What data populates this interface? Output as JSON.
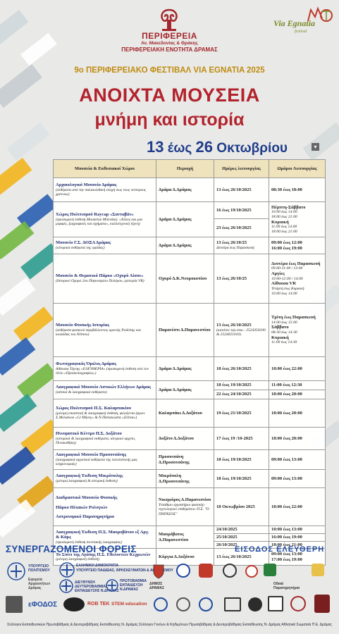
{
  "header": {
    "org_name": "ΠΕΡΙΦΕΡΕΙΑ",
    "org_region": "Αν. Μακεδονίας & Θράκης",
    "org_unit": "ΠΕΡΙΦΕΡΕΙΑΚΗ ΕΝΟΤΗΤΑ ΔΡΑΜΑΣ",
    "via_logo": "Via Egnatia",
    "via_logo_sub": "festival",
    "festival": "9ο ΠΕΡΙΦΕΡΕΙΑΚΟ ΦΕΣΤΙΒΑΛ VIA EGNATIA 2025",
    "title_line1": "ΑΝΟΙΧΤΑ ΜΟΥΣΕΙΑ",
    "title_line2": "μνήμη και ιστορία",
    "dates_from": "13",
    "dates_mid": " έως ",
    "dates_to": "26",
    "dates_month": " Οκτωβρίου"
  },
  "table": {
    "headers": [
      "Μουσεία & Εκθεσιακοί Χώροι",
      "Περιοχή",
      "Ημέρες λειτουργίας",
      "Ωράριο Λειτουργίας"
    ],
    "rows": [
      {
        "name": "Αρχαιολογικό Μουσείο Δράμας",
        "desc": "(εκθέματα από την παλαιολιθική εποχή έως τους νεότερους χρόνους)",
        "place": "Δράμα Δ.Δράμας",
        "days": "13 έως 26/10/2025",
        "hours": "08:30 έως 18:00"
      },
      {
        "name": "Χώρος Πολιτισμού Raycap «Σανταβάν»",
        "desc": "(προσωρινή έκθεση Μουσείου Μπενάκη: «Χίλιες και μια μορφές, ζωγραφικές και σχήματα», καλλιτεχνική τέχνη)",
        "place": "Δράμα Δ.Δράμας",
        "days1": "16 έως 19/10/2025",
        "days2": "23 έως 26/10/2025",
        "h1": "Πέμπτη-Σάββατο",
        "h2": "10:00 έως 14:00",
        "h3": "18:00 έως 21:00",
        "h4": "Κυριακή",
        "h5": "11:00 έως 14:00",
        "h6": "18:00 έως 21:00"
      },
      {
        "name": "Μουσείο Γ.Σ. ΔΟΞΑ Δράμας",
        "desc": "(ιστορικά εκθέματα της ομάδας)",
        "place": "Δράμα Δ.Δράμας",
        "days": "13 έως 26/10/25",
        "days_note": "Δευτέρα έως Παρασκευή",
        "hours": "09:00 έως 12:00",
        "hours2": "16:00 έως 19:00"
      },
      {
        "name": "Μουσείο & Θεματικό Πάρκο «Οχυρό Λίσσε»",
        "desc": "(Ιστορικό Οχυρό 2ου Παγκοσμίου Πολέμου, εμπειρία VR)",
        "place": "Οχυρό Δ.Κ.Νευροκοπίου",
        "days": "13 έως 26/10/25",
        "h1": "Δευτέρα έως Παρασκευή",
        "h2": "09:00-11:00 / 13:00",
        "h3": "Αργίες",
        "h4": "10:00-12:00 / 14:00",
        "h5": "Αίθουσα VR",
        "h6": "Τετάρτη έως Κυριακή",
        "h7": "10:00 έως 14:00"
      },
      {
        "name": "Μουσείο Φυσικής Ιστορίας",
        "desc": "(εκθέματα φυσικού περιβάλλοντος ορεινής Ροδόπης και κοιλάδας του Νέστου)",
        "place": "Παρανέστι Δ.Παρανεστίου",
        "days": "13 έως 26/10/2025",
        "days_note": "(κατόπιν τηλ.επικ.: 2524350100 & 2524021010)",
        "h1": "Τρίτη έως Παρασκευή",
        "h2": "14:00 έως 15:00",
        "h3": "Σάββατο",
        "h4": "08:30 έως 14:30",
        "h5": "Κυριακή",
        "h6": "11:00 έως 14:30"
      },
      {
        "name": "Φωτογραφικός Όμιλος Δράμας",
        "desc": "Αίθουσα Τέχνης «ΕΛΕΥΘΕΡΙΑ» (προσωρινή έκθεση υπό τον τίτλο «Προσωπογραφίες»)",
        "place": "Δράμα Δ.Δράμας",
        "days": "18 έως 26/10/2025",
        "hours": "18:00 έως 22:00"
      },
      {
        "name": "Λαογραφικό Μουσείο Αστικών Ελλήνων Δράμας",
        "desc": "(αστικά & λαογραφικά εκθέματα)",
        "place": "Δράμα Δ.Δράμας",
        "days1": "18 έως 19/10/2025",
        "days2": "22 έως 24/10/2025",
        "hours1": "11:00 έως 12:30",
        "hours2": "18:00 έως 20:00"
      },
      {
        "name": "Χώρος Πολιτισμού Π.Σ. Καλαμπακίου",
        "desc": "(μόνιμη εικαστική & λαογραφική έκθεση, φιλοξενία έργων Σ.Μελιάκου «12 Μήνες» & Ν.Παπακώστα «Σπίτια»)",
        "place": "Καλαμπάκι Δ.Δοξάτου",
        "days": "19 έως 21/10/2025",
        "hours": "18:00 έως 20:00"
      },
      {
        "name": "Πνευματικό Κέντρο Π.Σ. Δοξάτου",
        "desc": "(ιστορικά & λαογραφικά εκθέματα, ιστορικό αρχείο, Πινακοθήκη)",
        "place": "Δοξάτο Δ.Δοξάτου",
        "days": "17 έως 19 /10-2025",
        "hours": "18:00 έως 20:00"
      },
      {
        "name": "Λαογραφικό Μουσείο Προσοτσάνης",
        "desc": "(λαογραφικά αγροτικά εκθέματα της πολιτιστικής μας κληρονομιάς)",
        "place": "Προσοτσάνη Δ.Προσοτσάνης",
        "days": "18 έως 19/10/2025",
        "hours": "09:00 έως 13:00"
      },
      {
        "name": "Λαογραφική Έκθεση Μικρόπολης",
        "desc": "(μόνιμη λαογραφική & ιστορική έκθεση)",
        "place": "Μικρόπολη Δ.Προσοτσάνης",
        "days": "18 έως 19/10/2025",
        "hours": "09:00 έως 13:00"
      },
      {
        "names": [
          "Διαδραστικό Μουσείο Φυσικής",
          "Πάρκο Ηλιακών Ρολογιών",
          "Αστρονομικό Παρατηρητήριο"
        ],
        "place1": "Νικηφόρος Δ.Παρανεστίου",
        "place2": "Υπαίθριο εργαστήριο φυσικής-τεχνολογικό επιθεμάτων Π.Σ. \"Ο ΠΗΓΑΣΟΣ\"",
        "days": "18 Οκτωβρίου 2025",
        "hours": "18:00 έως 22:00"
      },
      {
        "name": "Λαογραφική Έκθεση Π.Σ. Μαυροβάτου εξ Αργ. & Κάρς",
        "desc": "(προσωρινή έκθεση ποντιακής λαογραφίας)",
        "place": "Μαυρόβατος Δ.Παρανεστίου",
        "days1": "24/10/2025",
        "days2": "25/10/2025",
        "days3": "26/10/2025",
        "hours1": "10:00 έως 13:00",
        "hours2": "16:00 έως 19:00",
        "hours3": "18:00 έως 21:00"
      },
      {
        "name": "Το Σπίτι της Αγάπης Π.Σ. Εθελοντών Κεχρωτών",
        "desc": "(μόνιμη λαογραφική έκθεση)",
        "place": "Κύργια Δ.Δοξάτου",
        "days": "13 έως 26/10/2025",
        "hours": "09:00 έως 13:00",
        "hours2": "17:00 έως 19:00"
      }
    ]
  },
  "footer": {
    "partners_title": "ΣΥΝΕΡΓΑΖΟΜΕΝΟΙ ΦΟΡΕΙΣ",
    "free_entry": "ΕΙΣΟΔΟΣ ΕΛΕΥΘΕΡΗ",
    "ministry1": "ΥΠΟΥΡΓΕΙΟ ΠΟΛΙΤΙΣΜΟΥ",
    "ministry1b": "Εφορεία Αρχαιοτήτων Δράμας",
    "ministry2": "ΕΛΛΗΝΙΚΗ ΔΗΜΟΚΡΑΤΙΑ",
    "ministry2b": "ΥΠΟΥΡΓΕΙΟ ΠΑΙΔΕΙΑΣ, ΘΡΗΣΚΕΥΜΑΤΩΝ & ΑΘΛΗΤΙΣΜΟΥ",
    "ministry3": "ΔΙΕΥΘΥΝΣΗ ΔΕΥΤΕΡΟΒΑΘΜΙΑΣ ΕΚΠΑΙΔΕΥΣΗΣ Ν.ΔΡΑΜΑΣ",
    "ministry4": "ΠΡΩΤΟΒΑΘΜΙΑ ΕΚΠΑΙΔΕΥΣΗ Ν.ΔΡΑΜΑΣ",
    "dimos": "ΔΗΜΟΣ ΔΡΑΜΑΣ",
    "arthur": "Οδικά Παρατηρητήρια",
    "efodos": "εΦΟΔΟΣ",
    "robotek": "ROB TEK",
    "stem": "STEM education",
    "bottom_line": "Σύλλογοι Εκπαιδευτικών Πρωτοβάθμιας & Δευτεροβάθμιας Εκπαίδευσης Ν. Δράμας   Σύλλογοι Γονέων & Κηδεμόνων Πρωτοβάθμιας & Δευτεροβάθμιας Εκπαίδευσης Ν. Δράμας   Αθλητικά Σωματεία Π.Ε. Δράμας"
  }
}
